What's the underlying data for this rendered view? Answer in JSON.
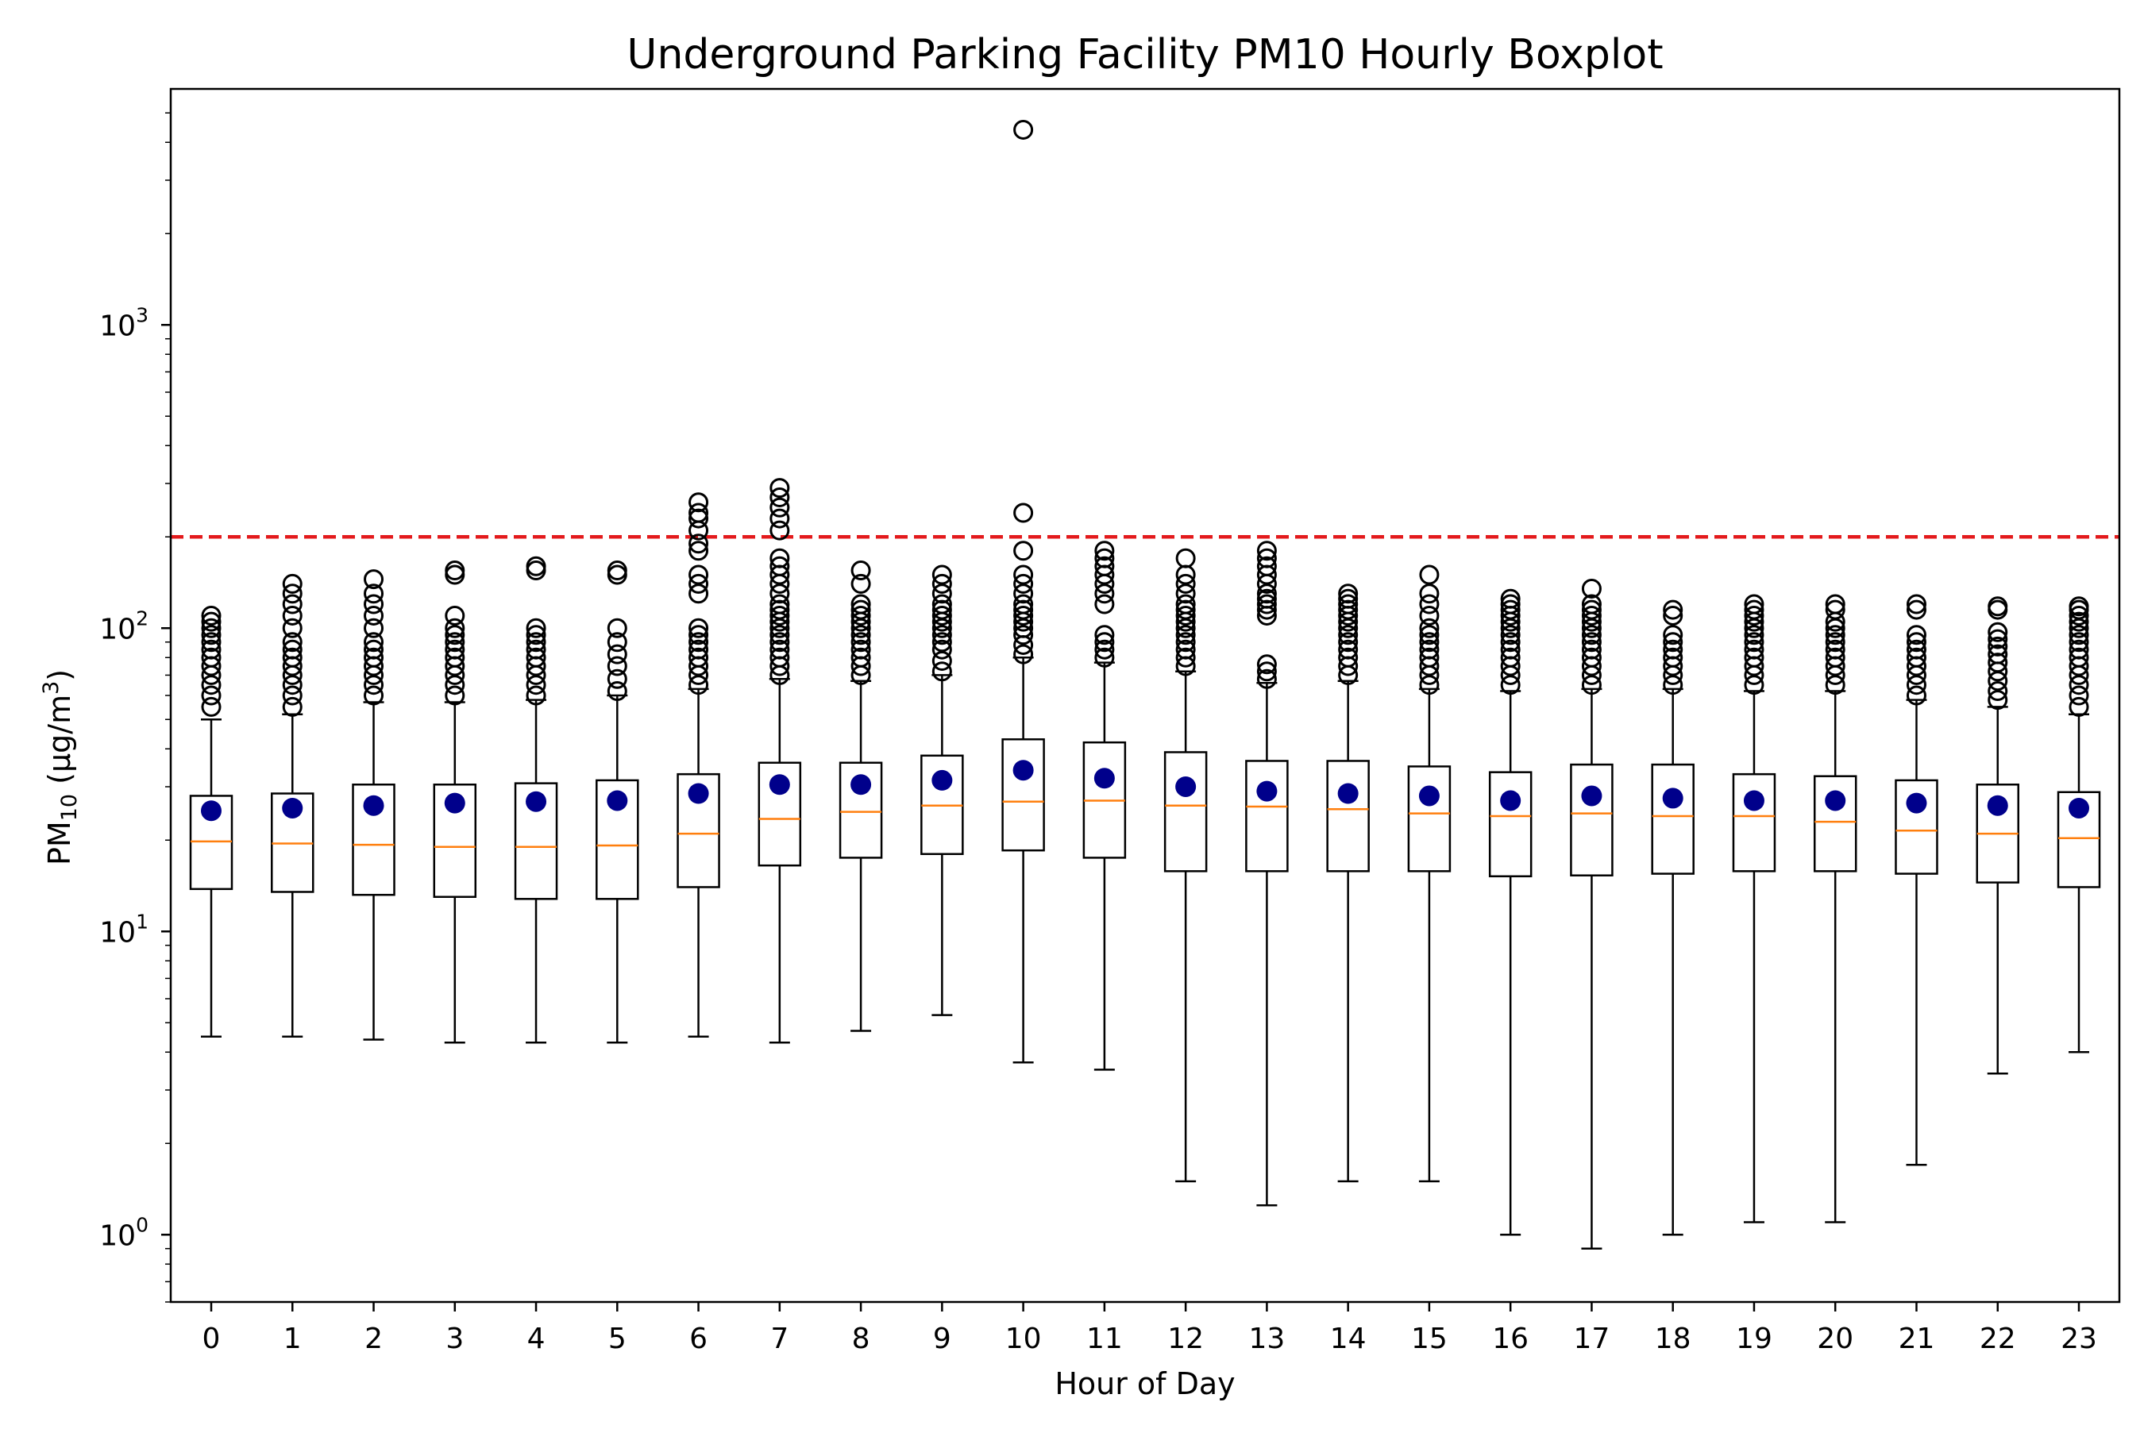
{
  "chart_data": {
    "type": "boxplot",
    "title": "Underground Parking Facility PM10 Hourly Boxplot",
    "xlabel": "Hour of Day",
    "ylabel": {
      "base": "PM",
      "sub": "10",
      "unit_open": " (µg/m",
      "sup": "3",
      "unit_close": ")"
    },
    "yscale": "log",
    "ylim": [
      0.6,
      6000
    ],
    "yticks": [
      {
        "base": "10",
        "exp": "0",
        "value": 1
      },
      {
        "base": "10",
        "exp": "1",
        "value": 10
      },
      {
        "base": "10",
        "exp": "2",
        "value": 100
      },
      {
        "base": "10",
        "exp": "3",
        "value": 1000
      }
    ],
    "reference_line": {
      "value": 200,
      "color": "#e31a1c",
      "style": "dashed"
    },
    "colors": {
      "box": "#000000",
      "median": "#ff7f0e",
      "mean": "#00008b",
      "outlier": "#000000"
    },
    "categories": [
      "0",
      "1",
      "2",
      "3",
      "4",
      "5",
      "6",
      "7",
      "8",
      "9",
      "10",
      "11",
      "12",
      "13",
      "14",
      "15",
      "16",
      "17",
      "18",
      "19",
      "20",
      "21",
      "22",
      "23"
    ],
    "boxes": [
      {
        "whislo": 4.5,
        "q1": 13.8,
        "med": 19.8,
        "q3": 28.0,
        "mean": 25.0,
        "whishi": 50,
        "fliers": [
          55,
          60,
          65,
          70,
          75,
          80,
          85,
          90,
          95,
          100,
          105,
          110
        ]
      },
      {
        "whislo": 4.5,
        "q1": 13.5,
        "med": 19.5,
        "q3": 28.5,
        "mean": 25.5,
        "whishi": 52,
        "fliers": [
          55,
          60,
          65,
          70,
          75,
          80,
          85,
          90,
          100,
          110,
          120,
          130,
          140
        ]
      },
      {
        "whislo": 4.4,
        "q1": 13.2,
        "med": 19.3,
        "q3": 30.5,
        "mean": 26.0,
        "whishi": 57,
        "fliers": [
          60,
          65,
          70,
          75,
          80,
          85,
          90,
          100,
          110,
          120,
          130,
          145
        ]
      },
      {
        "whislo": 4.3,
        "q1": 13.0,
        "med": 19.0,
        "q3": 30.5,
        "mean": 26.5,
        "whishi": 57,
        "fliers": [
          60,
          65,
          70,
          75,
          80,
          85,
          90,
          95,
          100,
          110,
          150,
          155
        ]
      },
      {
        "whislo": 4.3,
        "q1": 12.8,
        "med": 19.0,
        "q3": 30.8,
        "mean": 26.8,
        "whishi": 58,
        "fliers": [
          60,
          65,
          70,
          75,
          80,
          85,
          90,
          95,
          100,
          155,
          160
        ]
      },
      {
        "whislo": 4.3,
        "q1": 12.8,
        "med": 19.2,
        "q3": 31.5,
        "mean": 27.0,
        "whishi": 60,
        "fliers": [
          62,
          68,
          75,
          82,
          90,
          100,
          150,
          155
        ]
      },
      {
        "whislo": 4.5,
        "q1": 14.0,
        "med": 21.0,
        "q3": 33.0,
        "mean": 28.5,
        "whishi": 63,
        "fliers": [
          65,
          70,
          75,
          80,
          85,
          90,
          95,
          100,
          130,
          140,
          150,
          180,
          190,
          210,
          230,
          240,
          260
        ]
      },
      {
        "whislo": 4.3,
        "q1": 16.5,
        "med": 23.5,
        "q3": 36.0,
        "mean": 30.5,
        "whishi": 68,
        "fliers": [
          70,
          75,
          80,
          85,
          90,
          95,
          100,
          105,
          110,
          115,
          120,
          130,
          140,
          150,
          160,
          170,
          210,
          230,
          250,
          270,
          290
        ]
      },
      {
        "whislo": 4.7,
        "q1": 17.5,
        "med": 24.8,
        "q3": 36.0,
        "mean": 30.5,
        "whishi": 67,
        "fliers": [
          70,
          75,
          80,
          85,
          90,
          95,
          100,
          105,
          110,
          115,
          120,
          140,
          155
        ]
      },
      {
        "whislo": 5.3,
        "q1": 18.0,
        "med": 26.0,
        "q3": 38.0,
        "mean": 31.5,
        "whishi": 70,
        "fliers": [
          72,
          78,
          85,
          90,
          95,
          100,
          105,
          110,
          115,
          120,
          130,
          140,
          150
        ]
      },
      {
        "whislo": 3.7,
        "q1": 18.5,
        "med": 26.8,
        "q3": 43.0,
        "mean": 34.0,
        "whishi": 80,
        "fliers": [
          82,
          88,
          95,
          100,
          105,
          110,
          115,
          120,
          130,
          140,
          150,
          180,
          240,
          4400
        ]
      },
      {
        "whislo": 3.5,
        "q1": 17.5,
        "med": 27.0,
        "q3": 42.0,
        "mean": 32.0,
        "whishi": 77,
        "fliers": [
          80,
          85,
          90,
          95,
          120,
          130,
          140,
          150,
          160,
          170,
          180
        ]
      },
      {
        "whislo": 1.5,
        "q1": 15.8,
        "med": 26.0,
        "q3": 39.0,
        "mean": 30.0,
        "whishi": 72,
        "fliers": [
          75,
          80,
          85,
          90,
          95,
          100,
          105,
          110,
          115,
          120,
          130,
          140,
          150,
          170
        ]
      },
      {
        "whislo": 1.25,
        "q1": 15.8,
        "med": 25.8,
        "q3": 36.5,
        "mean": 29.0,
        "whishi": 66,
        "fliers": [
          68,
          72,
          76,
          110,
          115,
          120,
          125,
          130,
          140,
          150,
          160,
          170,
          180
        ]
      },
      {
        "whislo": 1.5,
        "q1": 15.8,
        "med": 25.3,
        "q3": 36.5,
        "mean": 28.5,
        "whishi": 67,
        "fliers": [
          70,
          75,
          80,
          85,
          90,
          95,
          100,
          105,
          110,
          115,
          120,
          125,
          130
        ]
      },
      {
        "whislo": 1.5,
        "q1": 15.8,
        "med": 24.5,
        "q3": 35.0,
        "mean": 28.0,
        "whishi": 63,
        "fliers": [
          65,
          70,
          75,
          80,
          85,
          90,
          95,
          100,
          110,
          120,
          130,
          150
        ]
      },
      {
        "whislo": 1.0,
        "q1": 15.2,
        "med": 24.0,
        "q3": 33.5,
        "mean": 27.0,
        "whishi": 62,
        "fliers": [
          65,
          70,
          75,
          80,
          85,
          90,
          95,
          100,
          105,
          110,
          115,
          120,
          125
        ]
      },
      {
        "whislo": 0.9,
        "q1": 15.3,
        "med": 24.5,
        "q3": 35.5,
        "mean": 28.0,
        "whishi": 63,
        "fliers": [
          65,
          70,
          75,
          80,
          85,
          90,
          95,
          100,
          105,
          110,
          115,
          120,
          135
        ]
      },
      {
        "whislo": 1.0,
        "q1": 15.5,
        "med": 24.0,
        "q3": 35.5,
        "mean": 27.5,
        "whishi": 63,
        "fliers": [
          65,
          70,
          75,
          80,
          85,
          90,
          95,
          110,
          115
        ]
      },
      {
        "whislo": 1.1,
        "q1": 15.8,
        "med": 24.0,
        "q3": 33.0,
        "mean": 27.0,
        "whishi": 62,
        "fliers": [
          65,
          70,
          75,
          80,
          85,
          90,
          95,
          100,
          105,
          110,
          115,
          120
        ]
      },
      {
        "whislo": 1.1,
        "q1": 15.8,
        "med": 23.0,
        "q3": 32.5,
        "mean": 27.0,
        "whishi": 62,
        "fliers": [
          65,
          70,
          75,
          80,
          85,
          90,
          95,
          100,
          105,
          115,
          120
        ]
      },
      {
        "whislo": 1.7,
        "q1": 15.5,
        "med": 21.5,
        "q3": 31.5,
        "mean": 26.5,
        "whishi": 58,
        "fliers": [
          60,
          65,
          70,
          75,
          80,
          85,
          90,
          95,
          115,
          120
        ]
      },
      {
        "whislo": 3.4,
        "q1": 14.5,
        "med": 21.0,
        "q3": 30.5,
        "mean": 26.0,
        "whishi": 55,
        "fliers": [
          58,
          62,
          67,
          72,
          77,
          82,
          87,
          92,
          97,
          115,
          118
        ]
      },
      {
        "whislo": 4.0,
        "q1": 14.0,
        "med": 20.3,
        "q3": 28.8,
        "mean": 25.5,
        "whishi": 52,
        "fliers": [
          55,
          60,
          65,
          70,
          75,
          80,
          85,
          90,
          95,
          100,
          105,
          110,
          115,
          118
        ]
      }
    ]
  }
}
